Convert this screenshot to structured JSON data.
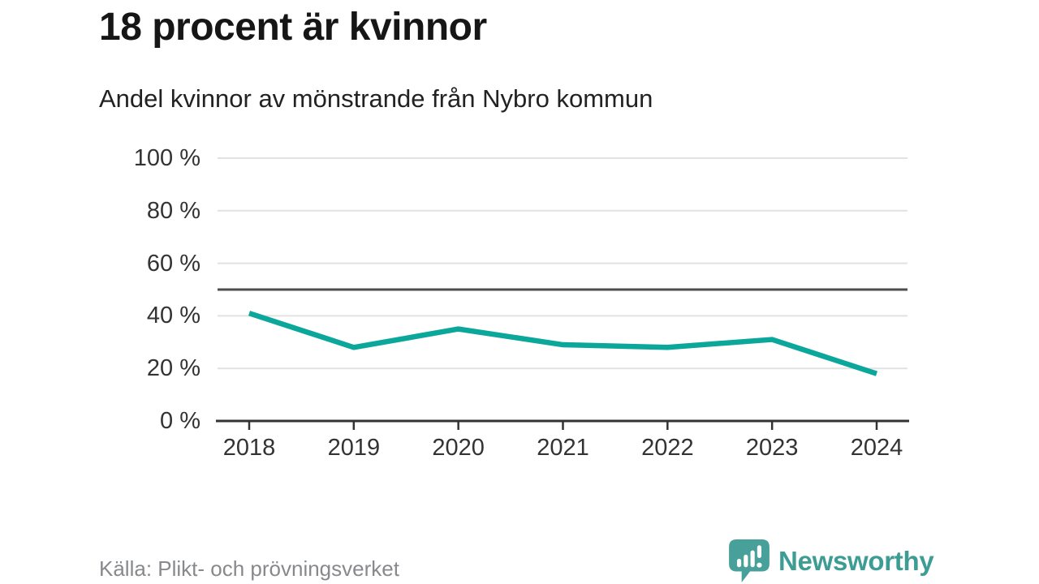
{
  "header": {
    "title": "18 procent är kvinnor",
    "subtitle": "Andel kvinnor av mönstrande från Nybro kommun"
  },
  "chart_data": {
    "type": "line",
    "title": "18 procent är kvinnor",
    "subtitle": "Andel kvinnor av mönstrande från Nybro kommun",
    "x": [
      "2018",
      "2019",
      "2020",
      "2021",
      "2022",
      "2023",
      "2024"
    ],
    "series": [
      {
        "name": "Andel kvinnor av mönstrande",
        "values": [
          41,
          28,
          35,
          29,
          28,
          31,
          18
        ]
      }
    ],
    "xlabel": "",
    "ylabel": "",
    "ylim": [
      0,
      100
    ],
    "yticks": [
      0,
      20,
      40,
      60,
      80,
      100
    ],
    "ytick_suffix": " %",
    "reference_line": 50,
    "grid": true,
    "legend": "none",
    "colors": {
      "line": "#0ca79b",
      "grid": "#e2e2e2",
      "reference_line": "#4d4d4d",
      "axis": "#333333",
      "tick_text": "#333333"
    }
  },
  "footer": {
    "source": "Källa: Plikt- och prövningsverket",
    "brand": {
      "name": "Newsworthy",
      "logo_icon": "newsworthy-speech-bubble-bar-chart-icon",
      "text_color": "#3d9c93",
      "icon_color": "#47a099"
    }
  }
}
